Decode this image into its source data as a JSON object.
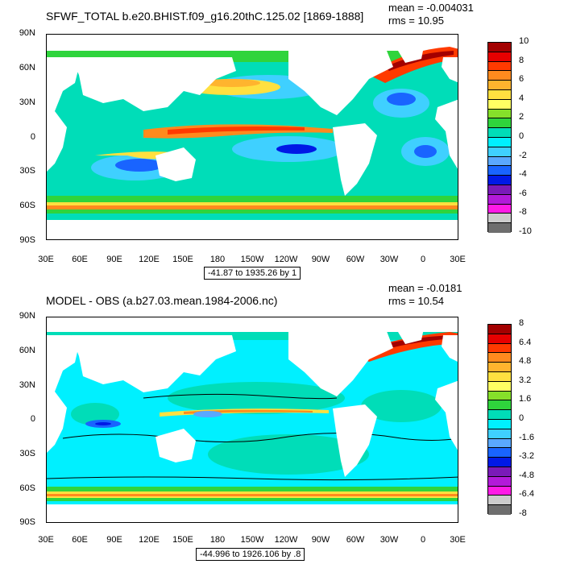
{
  "panels": [
    {
      "title": "SFWF_TOTAL b.e20.BHIST.f09_g16.20thC.125.02 [1869-1888]",
      "mean": "mean = -0.004031",
      "rms": "rms = 10.95",
      "range": "-41.87 to 1935.26 by 1",
      "colorbar_labels": [
        "10",
        "8",
        "6",
        "4",
        "2",
        "0",
        "-2",
        "-4",
        "-6",
        "-8",
        "-10"
      ],
      "colorbar_colors": [
        "#a30000",
        "#e60000",
        "#ff3a00",
        "#ff8a1e",
        "#ffb42e",
        "#ffe040",
        "#ffff63",
        "#86e02a",
        "#2fd43c",
        "#00ddb8",
        "#00f0ff",
        "#3fd0ff",
        "#5aa8ff",
        "#1964ff",
        "#0019e6",
        "#7a1ab8",
        "#b31ad9",
        "#ff1ae6",
        "#cccccc",
        "#6e6e6e"
      ]
    },
    {
      "title": "MODEL - OBS (a.b27.03.mean.1984-2006.nc)",
      "mean": "mean = -0.0181",
      "rms": "rms = 10.54",
      "range": "-44.996 to 1926.106 by .8",
      "colorbar_labels": [
        "8",
        "6.4",
        "4.8",
        "3.2",
        "1.6",
        "0",
        "-1.6",
        "-3.2",
        "-4.8",
        "-6.4",
        "-8"
      ],
      "colorbar_colors": [
        "#a30000",
        "#e60000",
        "#ff3a00",
        "#ff8a1e",
        "#ffb42e",
        "#ffe040",
        "#ffff63",
        "#86e02a",
        "#2fd43c",
        "#00ddb8",
        "#00f0ff",
        "#3fd0ff",
        "#5aa8ff",
        "#1964ff",
        "#0019e6",
        "#7a1ab8",
        "#b31ad9",
        "#ff1ae6",
        "#cccccc",
        "#6e6e6e"
      ]
    }
  ],
  "lat_labels": [
    "90N",
    "60N",
    "30N",
    "0",
    "30S",
    "60S",
    "90S"
  ],
  "lon_labels": [
    "30E",
    "60E",
    "90E",
    "120E",
    "150E",
    "180",
    "150W",
    "120W",
    "90W",
    "60W",
    "30W",
    "0",
    "30E"
  ]
}
